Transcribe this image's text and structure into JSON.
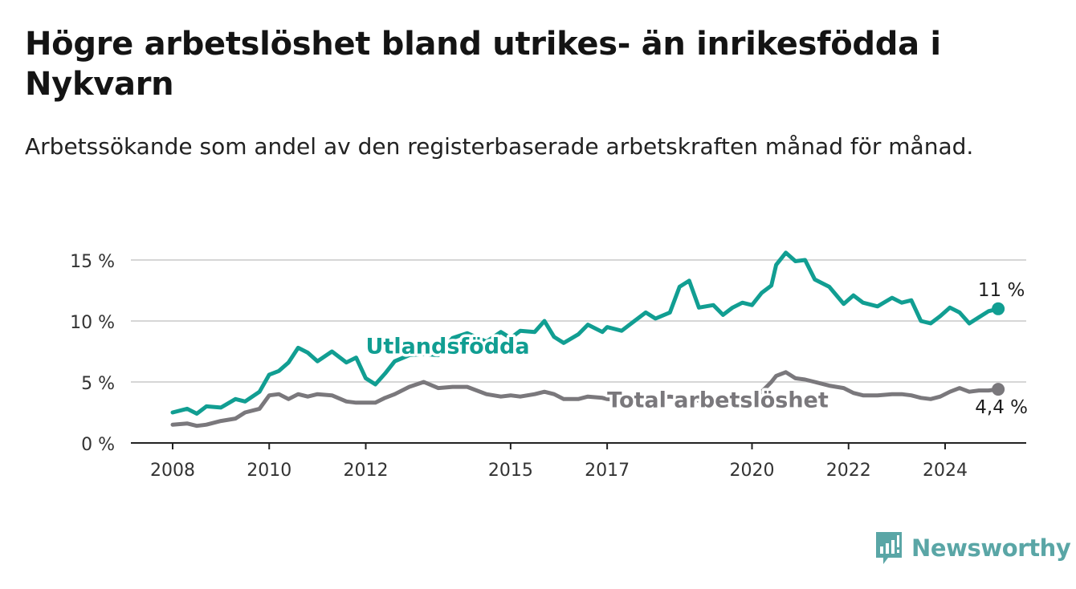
{
  "title": "Högre arbetslöshet bland utrikes- än inrikesfödda i Nykvarn",
  "subtitle": "Arbetssökande som andel av den registerbaserade arbetskraften månad för månad.",
  "brand": {
    "name": "Newsworthy",
    "icon": "newsworthy-chart-icon",
    "color": "#5aa6a6"
  },
  "chart_data": {
    "type": "line",
    "ylim": [
      0,
      16
    ],
    "y_ticks": [
      {
        "value": 0,
        "label": "0 %"
      },
      {
        "value": 5,
        "label": "5 %"
      },
      {
        "value": 10,
        "label": "10 %"
      },
      {
        "value": 15,
        "label": "15 %"
      }
    ],
    "x_ticks": [
      {
        "value": 2008.0,
        "label": "2008"
      },
      {
        "value": 2010.0,
        "label": "2010"
      },
      {
        "value": 2012.0,
        "label": "2012"
      },
      {
        "value": 2015.0,
        "label": "2015"
      },
      {
        "value": 2017.0,
        "label": "2017"
      },
      {
        "value": 2020.0,
        "label": "2020"
      },
      {
        "value": 2022.0,
        "label": "2022"
      },
      {
        "value": 2024.0,
        "label": "2024"
      }
    ],
    "grid": true,
    "series": [
      {
        "name": "Utlandsfödda",
        "color": "#119e92",
        "end_label": "11 %",
        "points": [
          [
            2008.0,
            2.5
          ],
          [
            2008.3,
            2.8
          ],
          [
            2008.5,
            2.4
          ],
          [
            2008.7,
            3.0
          ],
          [
            2009.0,
            2.9
          ],
          [
            2009.3,
            3.6
          ],
          [
            2009.5,
            3.4
          ],
          [
            2009.8,
            4.2
          ],
          [
            2010.0,
            5.6
          ],
          [
            2010.2,
            5.9
          ],
          [
            2010.4,
            6.6
          ],
          [
            2010.6,
            7.8
          ],
          [
            2010.8,
            7.4
          ],
          [
            2011.0,
            6.7
          ],
          [
            2011.3,
            7.5
          ],
          [
            2011.6,
            6.6
          ],
          [
            2011.8,
            7.0
          ],
          [
            2012.0,
            5.3
          ],
          [
            2012.2,
            4.8
          ],
          [
            2012.4,
            5.7
          ],
          [
            2012.6,
            6.7
          ],
          [
            2012.9,
            7.2
          ],
          [
            2013.2,
            7.3
          ],
          [
            2013.5,
            7.2
          ],
          [
            2013.8,
            8.6
          ],
          [
            2014.1,
            9.0
          ],
          [
            2014.5,
            8.3
          ],
          [
            2014.8,
            9.1
          ],
          [
            2015.0,
            8.6
          ],
          [
            2015.2,
            9.2
          ],
          [
            2015.5,
            9.1
          ],
          [
            2015.7,
            10.0
          ],
          [
            2015.9,
            8.7
          ],
          [
            2016.1,
            8.2
          ],
          [
            2016.4,
            8.9
          ],
          [
            2016.6,
            9.7
          ],
          [
            2016.9,
            9.1
          ],
          [
            2017.0,
            9.5
          ],
          [
            2017.3,
            9.2
          ],
          [
            2017.5,
            9.8
          ],
          [
            2017.8,
            10.7
          ],
          [
            2018.0,
            10.2
          ],
          [
            2018.3,
            10.7
          ],
          [
            2018.5,
            12.8
          ],
          [
            2018.7,
            13.3
          ],
          [
            2018.9,
            11.1
          ],
          [
            2019.2,
            11.3
          ],
          [
            2019.4,
            10.5
          ],
          [
            2019.6,
            11.1
          ],
          [
            2019.8,
            11.5
          ],
          [
            2020.0,
            11.3
          ],
          [
            2020.2,
            12.3
          ],
          [
            2020.4,
            12.9
          ],
          [
            2020.5,
            14.6
          ],
          [
            2020.7,
            15.6
          ],
          [
            2020.9,
            14.9
          ],
          [
            2021.1,
            15.0
          ],
          [
            2021.3,
            13.4
          ],
          [
            2021.6,
            12.8
          ],
          [
            2021.9,
            11.4
          ],
          [
            2022.1,
            12.1
          ],
          [
            2022.3,
            11.5
          ],
          [
            2022.6,
            11.2
          ],
          [
            2022.9,
            11.9
          ],
          [
            2023.1,
            11.5
          ],
          [
            2023.3,
            11.7
          ],
          [
            2023.5,
            10.0
          ],
          [
            2023.7,
            9.8
          ],
          [
            2023.9,
            10.4
          ],
          [
            2024.1,
            11.1
          ],
          [
            2024.3,
            10.7
          ],
          [
            2024.5,
            9.8
          ],
          [
            2024.7,
            10.3
          ],
          [
            2024.9,
            10.8
          ],
          [
            2025.1,
            11.0
          ]
        ],
        "label_text": "Utlandsfödda",
        "label_at": [
          2012.0,
          8.0
        ]
      },
      {
        "name": "Total arbetslöshet",
        "color": "#7a787c",
        "end_label": "4,4 %",
        "points": [
          [
            2008.0,
            1.5
          ],
          [
            2008.3,
            1.6
          ],
          [
            2008.5,
            1.4
          ],
          [
            2008.7,
            1.5
          ],
          [
            2009.0,
            1.8
          ],
          [
            2009.3,
            2.0
          ],
          [
            2009.5,
            2.5
          ],
          [
            2009.8,
            2.8
          ],
          [
            2010.0,
            3.9
          ],
          [
            2010.2,
            4.0
          ],
          [
            2010.4,
            3.6
          ],
          [
            2010.6,
            4.0
          ],
          [
            2010.8,
            3.8
          ],
          [
            2011.0,
            4.0
          ],
          [
            2011.3,
            3.9
          ],
          [
            2011.6,
            3.4
          ],
          [
            2011.8,
            3.3
          ],
          [
            2012.0,
            3.3
          ],
          [
            2012.2,
            3.3
          ],
          [
            2012.4,
            3.7
          ],
          [
            2012.6,
            4.0
          ],
          [
            2012.9,
            4.6
          ],
          [
            2013.2,
            5.0
          ],
          [
            2013.5,
            4.5
          ],
          [
            2013.8,
            4.6
          ],
          [
            2014.1,
            4.6
          ],
          [
            2014.5,
            4.0
          ],
          [
            2014.8,
            3.8
          ],
          [
            2015.0,
            3.9
          ],
          [
            2015.2,
            3.8
          ],
          [
            2015.5,
            4.0
          ],
          [
            2015.7,
            4.2
          ],
          [
            2015.9,
            4.0
          ],
          [
            2016.1,
            3.6
          ],
          [
            2016.4,
            3.6
          ],
          [
            2016.6,
            3.8
          ],
          [
            2016.9,
            3.7
          ],
          [
            2017.0,
            3.6
          ],
          [
            2017.3,
            3.5
          ],
          [
            2017.5,
            3.6
          ],
          [
            2017.8,
            3.6
          ],
          [
            2018.0,
            3.7
          ],
          [
            2018.3,
            3.8
          ],
          [
            2018.5,
            3.7
          ],
          [
            2018.7,
            3.4
          ],
          [
            2018.9,
            3.5
          ],
          [
            2019.2,
            3.4
          ],
          [
            2019.4,
            3.4
          ],
          [
            2019.6,
            3.6
          ],
          [
            2019.8,
            3.6
          ],
          [
            2020.0,
            3.8
          ],
          [
            2020.2,
            4.2
          ],
          [
            2020.4,
            5.0
          ],
          [
            2020.5,
            5.5
          ],
          [
            2020.7,
            5.8
          ],
          [
            2020.9,
            5.3
          ],
          [
            2021.1,
            5.2
          ],
          [
            2021.3,
            5.0
          ],
          [
            2021.6,
            4.7
          ],
          [
            2021.9,
            4.5
          ],
          [
            2022.1,
            4.1
          ],
          [
            2022.3,
            3.9
          ],
          [
            2022.6,
            3.9
          ],
          [
            2022.9,
            4.0
          ],
          [
            2023.1,
            4.0
          ],
          [
            2023.3,
            3.9
          ],
          [
            2023.5,
            3.7
          ],
          [
            2023.7,
            3.6
          ],
          [
            2023.9,
            3.8
          ],
          [
            2024.1,
            4.2
          ],
          [
            2024.3,
            4.5
          ],
          [
            2024.5,
            4.2
          ],
          [
            2024.7,
            4.3
          ],
          [
            2024.9,
            4.3
          ],
          [
            2025.1,
            4.4
          ]
        ],
        "label_text": "Total arbetslöshet",
        "label_at": [
          2017.0,
          3.6
        ]
      }
    ]
  }
}
